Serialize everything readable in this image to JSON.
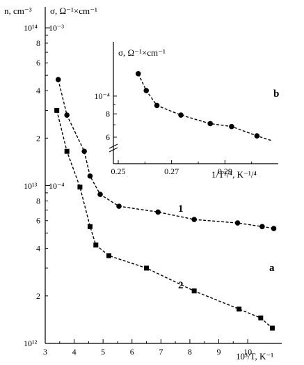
{
  "chart_data": [
    {
      "type": "line",
      "title": "",
      "y_axis_label_n": "n, cm⁻³",
      "y_axis_label_sigma": "σ, Ω⁻¹×cm⁻¹",
      "xlabel": "10³/T, K⁻¹",
      "x_scale": "linear",
      "y_scale": "log",
      "xlim": [
        3,
        11.2
      ],
      "ylim_n": [
        1000000000000.0,
        100000000000000.0
      ],
      "x_ticks": [
        "3",
        "4",
        "5",
        "6",
        "7",
        "8",
        "9",
        "10"
      ],
      "y_tick_labels": {
        "top_n": "10¹⁴",
        "top_sigma": "10⁻³",
        "mid_n": "10¹³",
        "mid_sigma": "10⁻⁴",
        "bottom_n": "10¹²",
        "minor": [
          "8",
          "6",
          "4",
          "2",
          "8",
          "6",
          "4",
          "2"
        ]
      },
      "panel_label": "a",
      "series": [
        {
          "name": "1",
          "marker": "circle",
          "x": [
            3.45,
            3.75,
            4.35,
            4.55,
            4.9,
            5.55,
            6.9,
            8.15,
            9.65,
            10.5,
            10.9
          ],
          "y": [
            47000000000000.0,
            28000000000000.0,
            16500000000000.0,
            11500000000000.0,
            8800000000000.0,
            7400000000000.0,
            6800000000000.0,
            6100000000000.0,
            5800000000000.0,
            5500000000000.0,
            5350000000000.0
          ]
        },
        {
          "name": "2",
          "marker": "square",
          "x": [
            3.4,
            3.75,
            4.2,
            4.55,
            4.75,
            5.2,
            6.5,
            8.15,
            9.7,
            10.45,
            10.85
          ],
          "y": [
            30000000000000.0,
            16500000000000.0,
            9800000000000.0,
            5500000000000.0,
            4200000000000.0,
            3600000000000.0,
            3000000000000.0,
            2150000000000.0,
            1650000000000.0,
            1450000000000.0,
            1250000000000.0
          ]
        }
      ],
      "grid": false,
      "legend": "none"
    },
    {
      "type": "line",
      "title": "",
      "ylabel": "σ, Ω⁻¹×cm⁻¹",
      "xlabel": "1/T¹/⁴, K⁻¹/⁴",
      "x_scale": "linear",
      "y_scale": "log",
      "xlim": [
        0.25,
        0.31
      ],
      "ylim": [
        5.5e-05,
        0.00016
      ],
      "x_ticks": [
        "0.25",
        "0.27",
        "0.29"
      ],
      "y_ticks": [
        "10⁻⁴",
        "8",
        "6"
      ],
      "panel_label": "b",
      "series": [
        {
          "marker": "circle",
          "x": [
            0.2575,
            0.2605,
            0.2645,
            0.2735,
            0.2845,
            0.2925,
            0.302
          ],
          "y": [
            0.000132,
            0.000107,
            8.9e-05,
            7.9e-05,
            7.1e-05,
            6.85e-05,
            6.1e-05
          ]
        }
      ],
      "grid": false,
      "legend": "none"
    }
  ]
}
